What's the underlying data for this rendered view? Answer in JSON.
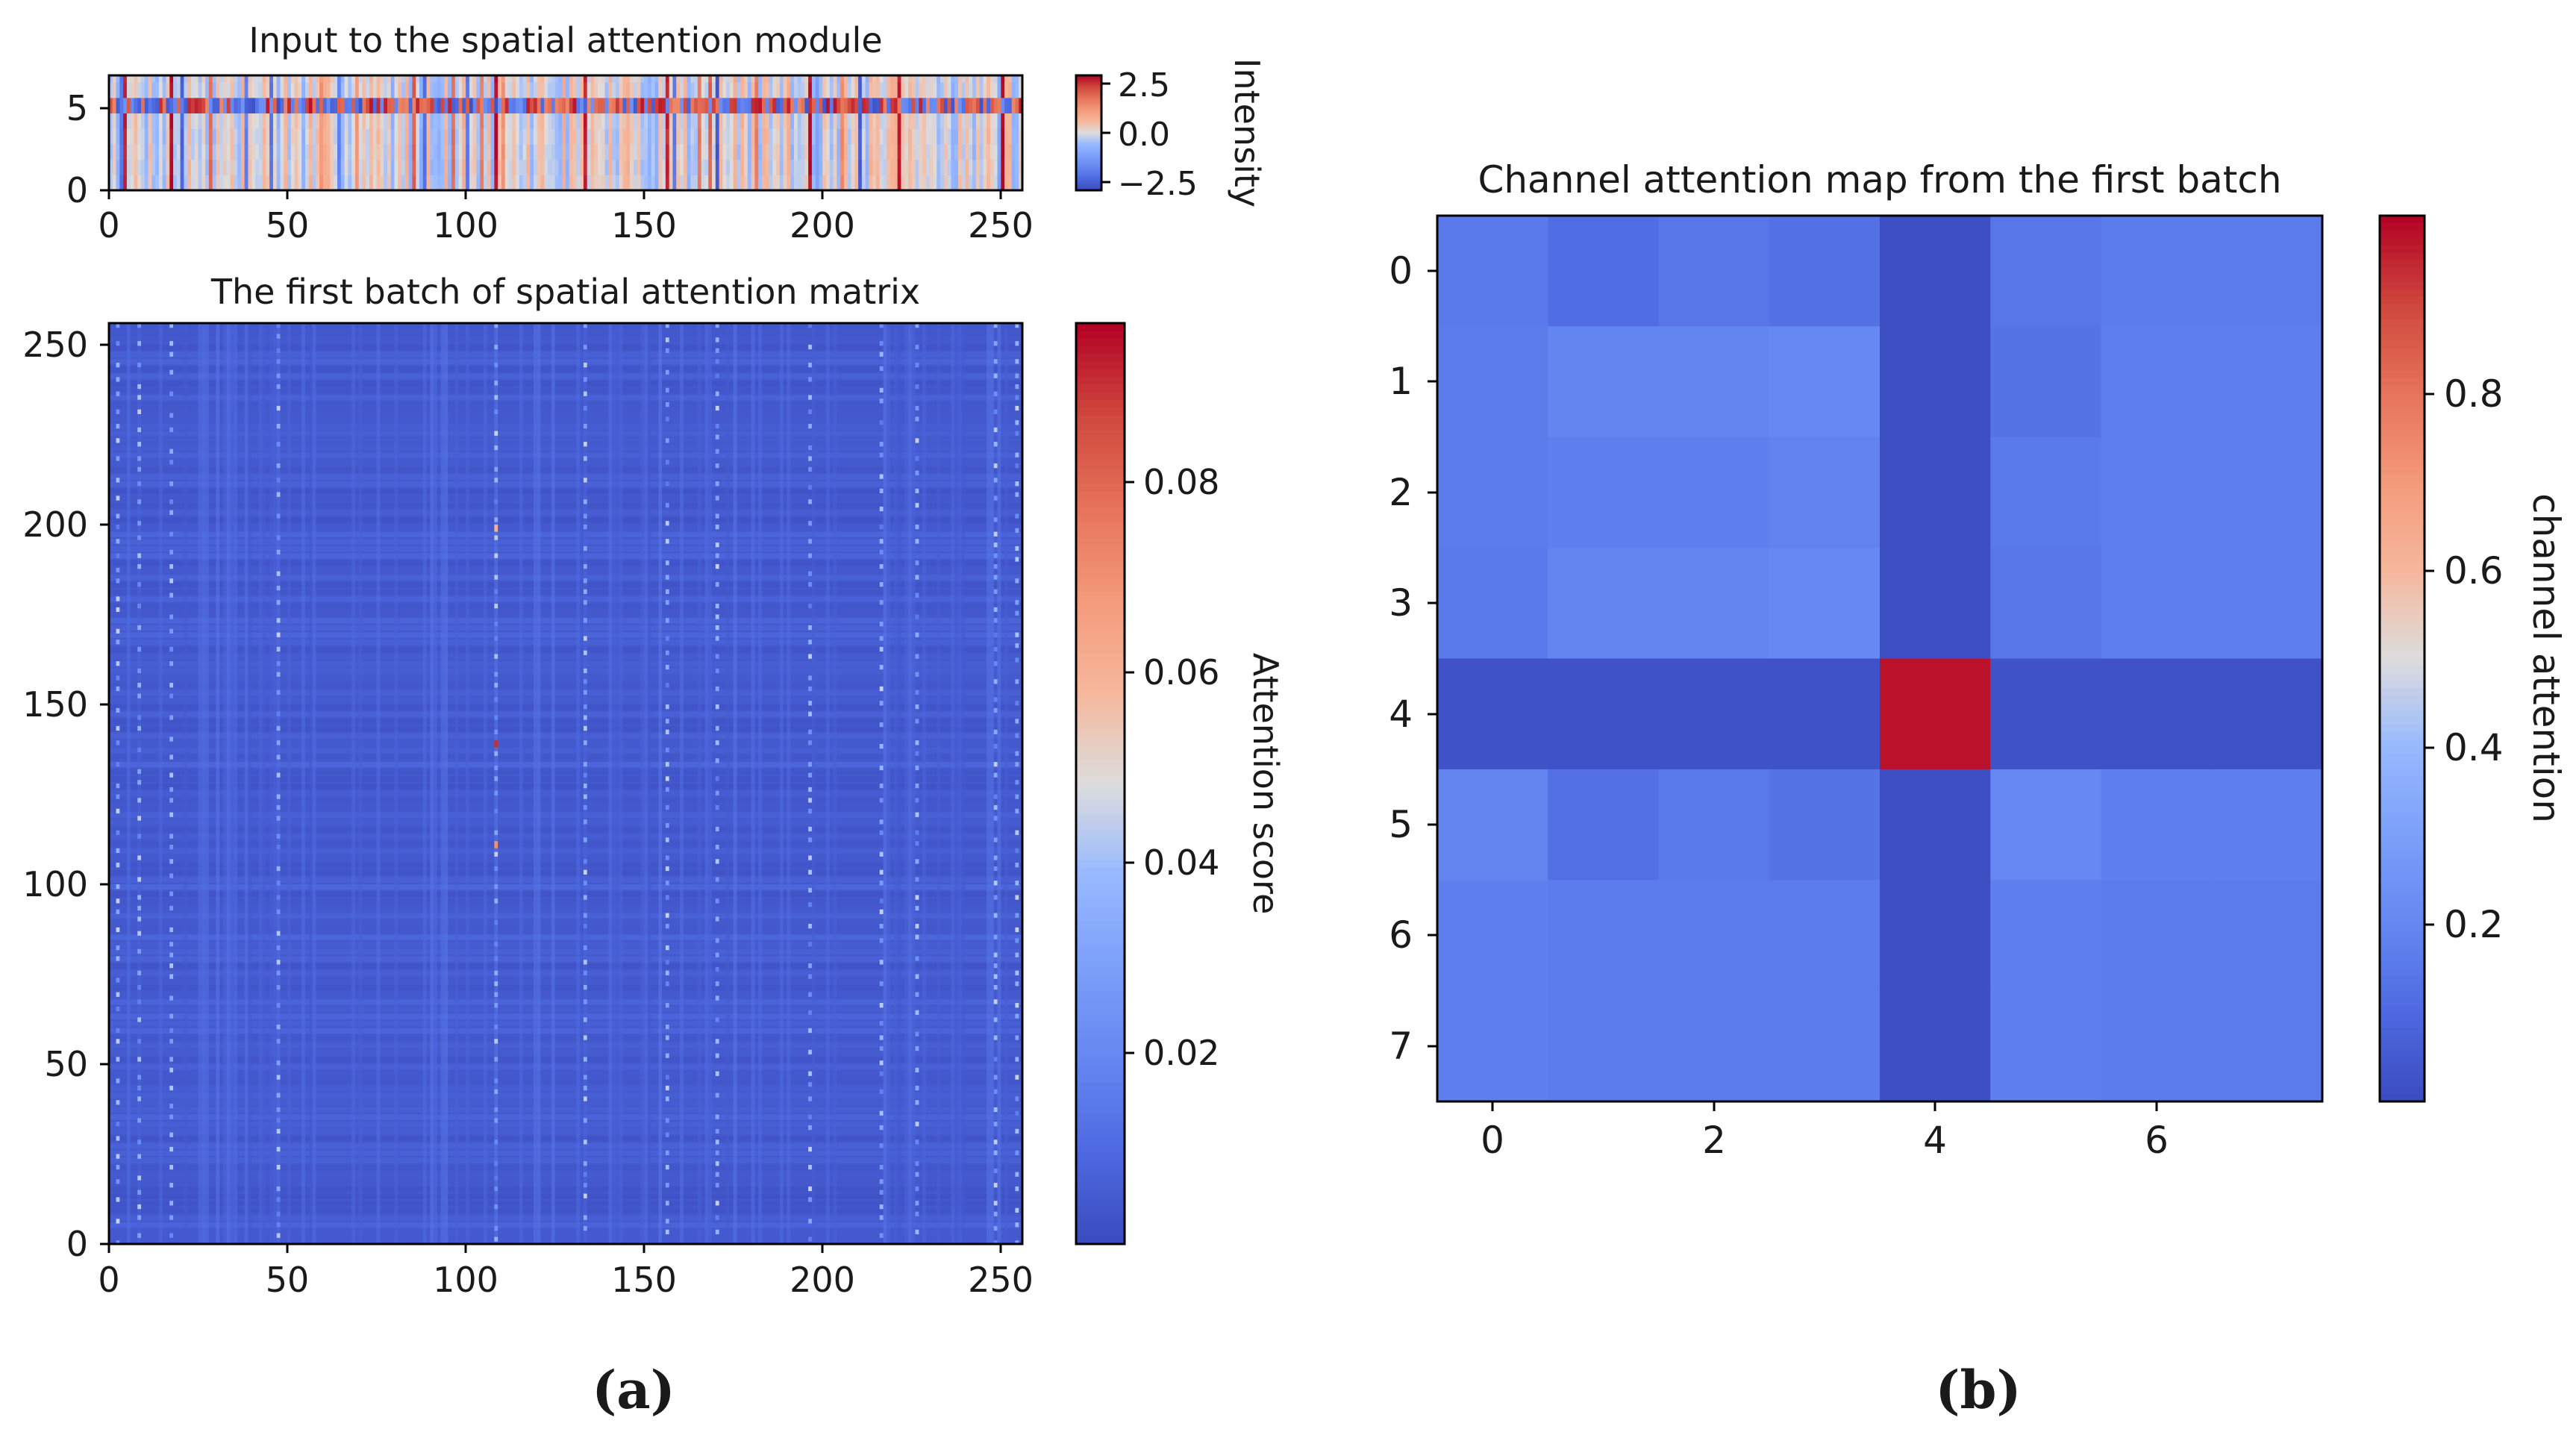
{
  "chart_data": [
    {
      "type": "heatmap",
      "panel_label": "(a)",
      "title": "Input to the spatial attention module",
      "xlabel": "",
      "ylabel": "",
      "x_ticks": [
        "0",
        "50",
        "100",
        "150",
        "200",
        "250"
      ],
      "y_ticks": [
        "0",
        "5"
      ],
      "xlim": [
        0,
        256
      ],
      "ylim": [
        0,
        7
      ],
      "rows": 8,
      "columns": 256,
      "highlight_row": 5,
      "highlight_row_note": "row 5 carries large-magnitude values across nearly all columns",
      "colormap": "coolwarm",
      "colorbar": {
        "label": "Intensity",
        "range": [
          -3.0,
          3.0
        ],
        "ticks": [
          "2.5",
          "0.0",
          "−2.5"
        ]
      },
      "pattern": "vertical stripes; most columns near -0.5 to 0.5, with saturated red columns (~+3) near x = 4, 17, 108, 156, 196, 250 and blue columns near x = 45, 170, 210"
    },
    {
      "type": "heatmap",
      "panel_label": "(a)",
      "title": "The first batch of spatial attention matrix",
      "xlabel": "",
      "ylabel": "",
      "x_ticks": [
        "0",
        "50",
        "100",
        "150",
        "200",
        "250"
      ],
      "y_ticks": [
        "0",
        "50",
        "100",
        "150",
        "200",
        "250"
      ],
      "xlim": [
        0,
        256
      ],
      "ylim": [
        0,
        256
      ],
      "size": [
        256,
        256
      ],
      "colormap": "coolwarm",
      "colorbar": {
        "label": "Attention score",
        "range": [
          0.0,
          0.096
        ],
        "ticks": [
          "0.02",
          "0.04",
          "0.06",
          "0.08"
        ]
      },
      "pattern": "nearly uniform attention around 0.004; faint brighter vertical stripes (~0.02-0.04) at columns near 8, 47, 108, 156, 196, 216, 226, 248; single hot cells (~0.06-0.09) in column 108"
    },
    {
      "type": "heatmap",
      "panel_label": "(b)",
      "title": "Channel attention map from the first batch",
      "xlabel": "",
      "ylabel": "",
      "x_ticks": [
        "0",
        "2",
        "4",
        "6"
      ],
      "y_ticks": [
        "0",
        "1",
        "2",
        "3",
        "4",
        "5",
        "6",
        "7"
      ],
      "colormap": "coolwarm",
      "colorbar": {
        "label": "channel attention",
        "range": [
          0.0,
          1.0
        ],
        "ticks": [
          "0.2",
          "0.4",
          "0.6",
          "0.8"
        ]
      },
      "matrix": [
        [
          0.15,
          0.11,
          0.14,
          0.12,
          0.01,
          0.14,
          0.16,
          0.16
        ],
        [
          0.16,
          0.19,
          0.19,
          0.2,
          0.01,
          0.13,
          0.17,
          0.17
        ],
        [
          0.16,
          0.17,
          0.17,
          0.18,
          0.01,
          0.15,
          0.17,
          0.17
        ],
        [
          0.15,
          0.19,
          0.19,
          0.2,
          0.01,
          0.14,
          0.17,
          0.17
        ],
        [
          0.02,
          0.02,
          0.02,
          0.02,
          0.98,
          0.02,
          0.02,
          0.02
        ],
        [
          0.19,
          0.12,
          0.15,
          0.13,
          0.01,
          0.2,
          0.17,
          0.17
        ],
        [
          0.17,
          0.16,
          0.16,
          0.16,
          0.01,
          0.17,
          0.16,
          0.16
        ],
        [
          0.17,
          0.16,
          0.16,
          0.16,
          0.01,
          0.17,
          0.16,
          0.16
        ]
      ]
    }
  ]
}
